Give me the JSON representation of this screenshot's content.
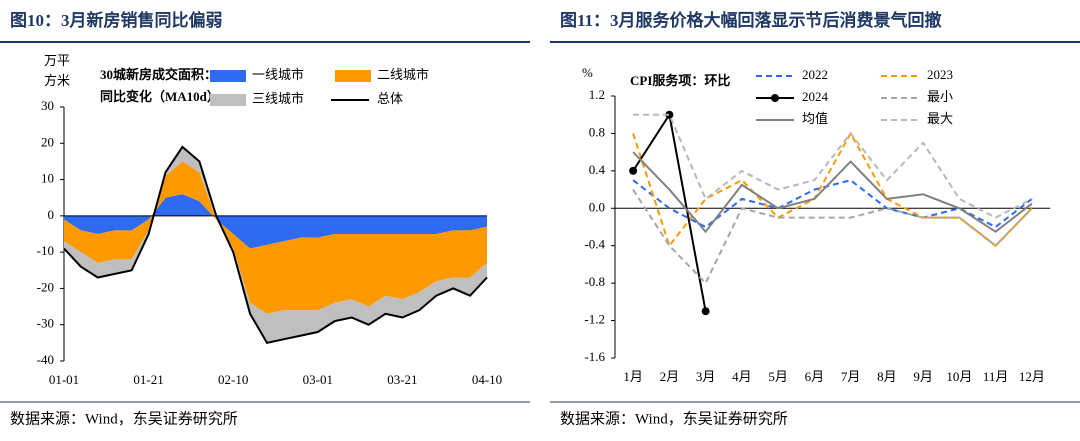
{
  "chart_data": [
    {
      "type": "area",
      "stacked": true,
      "title": "图10：3月新房销售同比偏弱",
      "ylabel": [
        "万平",
        "方米"
      ],
      "annotation": [
        "30城新房成交面积：",
        "同比变化（MA10d）"
      ],
      "source": "数据来源：Wind，东吴证券研究所",
      "categories": [
        "01-01",
        null,
        null,
        null,
        null,
        "01-21",
        null,
        null,
        null,
        null,
        "02-10",
        null,
        null,
        null,
        null,
        "03-01",
        null,
        null,
        null,
        null,
        "03-21",
        null,
        null,
        null,
        null,
        "04-10"
      ],
      "series": [
        {
          "name": "一线城市",
          "color": "#2f6bf0",
          "values": [
            -1,
            -4,
            -5,
            -4,
            -4,
            -1,
            5,
            6,
            4,
            -1,
            -5,
            -9,
            -8,
            -7,
            -6,
            -6,
            -5,
            -5,
            -5,
            -5,
            -5,
            -5,
            -5,
            -4,
            -4,
            -3
          ]
        },
        {
          "name": "二线城市",
          "color": "#ff9900",
          "values": [
            -6,
            -6,
            -8,
            -8,
            -8,
            -3,
            6,
            9,
            8,
            0,
            -4,
            -15,
            -19,
            -19,
            -20,
            -20,
            -19,
            -18,
            -20,
            -17,
            -18,
            -16,
            -13,
            -13,
            -13,
            -10
          ]
        },
        {
          "name": "三线城市",
          "color": "#bfbfbf",
          "values": [
            -2,
            -4,
            -4,
            -4,
            -3,
            -1,
            1,
            4,
            3,
            1,
            -1,
            -3,
            -8,
            -8,
            -7,
            -6,
            -5,
            -5,
            -5,
            -5,
            -5,
            -5,
            -4,
            -3,
            -5,
            -4
          ]
        },
        {
          "name": "总体",
          "color": "#000000",
          "type": "line",
          "values": [
            -9,
            -14,
            -17,
            -16,
            -15,
            -5,
            12,
            19,
            15,
            0,
            -10,
            -27,
            -35,
            -34,
            -33,
            -32,
            -29,
            -28,
            -30,
            -27,
            -28,
            -26,
            -22,
            -20,
            -22,
            -17
          ]
        }
      ],
      "ylim": [
        -40,
        30
      ],
      "yticks": [
        30,
        20,
        10,
        0,
        -10,
        -20,
        -30,
        -40
      ]
    },
    {
      "type": "line",
      "title": "图11：3月服务价格大幅回落显示节后消费景气回撤",
      "ylabel": [
        "%"
      ],
      "annotation": [
        "CPI服务项：环比"
      ],
      "source": "数据来源：Wind，东吴证券研究所",
      "categories": [
        "1月",
        "2月",
        "3月",
        "4月",
        "5月",
        "6月",
        "7月",
        "8月",
        "9月",
        "10月",
        "11月",
        "12月"
      ],
      "series": [
        {
          "name": "2022",
          "color": "#2f6bf0",
          "dash": true,
          "values": [
            0.3,
            0.0,
            -0.2,
            0.1,
            0.0,
            0.2,
            0.3,
            0.0,
            -0.1,
            0.0,
            -0.2,
            0.1
          ]
        },
        {
          "name": "2023",
          "color": "#ff9900",
          "dash": true,
          "values": [
            0.8,
            -0.4,
            0.1,
            0.3,
            -0.1,
            0.1,
            0.8,
            0.1,
            -0.1,
            -0.1,
            -0.4,
            0.0
          ]
        },
        {
          "name": "2024",
          "color": "#000000",
          "marker": true,
          "values": [
            0.4,
            1.0,
            -1.1,
            null,
            null,
            null,
            null,
            null,
            null,
            null,
            null,
            null
          ]
        },
        {
          "name": "最小",
          "color": "#a6a6a6",
          "dash": true,
          "values": [
            0.2,
            -0.4,
            -0.8,
            0.0,
            -0.1,
            -0.1,
            -0.1,
            0.0,
            -0.1,
            -0.1,
            -0.4,
            0.0
          ]
        },
        {
          "name": "均值",
          "color": "#808080",
          "values": [
            0.6,
            0.2,
            -0.25,
            0.25,
            0.0,
            0.1,
            0.5,
            0.1,
            0.15,
            0.0,
            -0.25,
            0.05
          ]
        },
        {
          "name": "最大",
          "color": "#b8b8b8",
          "dash": true,
          "values": [
            1.0,
            1.0,
            0.1,
            0.4,
            0.2,
            0.3,
            0.8,
            0.3,
            0.7,
            0.1,
            -0.1,
            0.1
          ]
        }
      ],
      "ylim": [
        -1.6,
        1.2
      ],
      "yticks": [
        1.2,
        0.8,
        0.4,
        {
          "value": 0,
          "label": "0.0"
        },
        -0.4,
        -0.8,
        -1.2,
        -1.6
      ]
    }
  ]
}
